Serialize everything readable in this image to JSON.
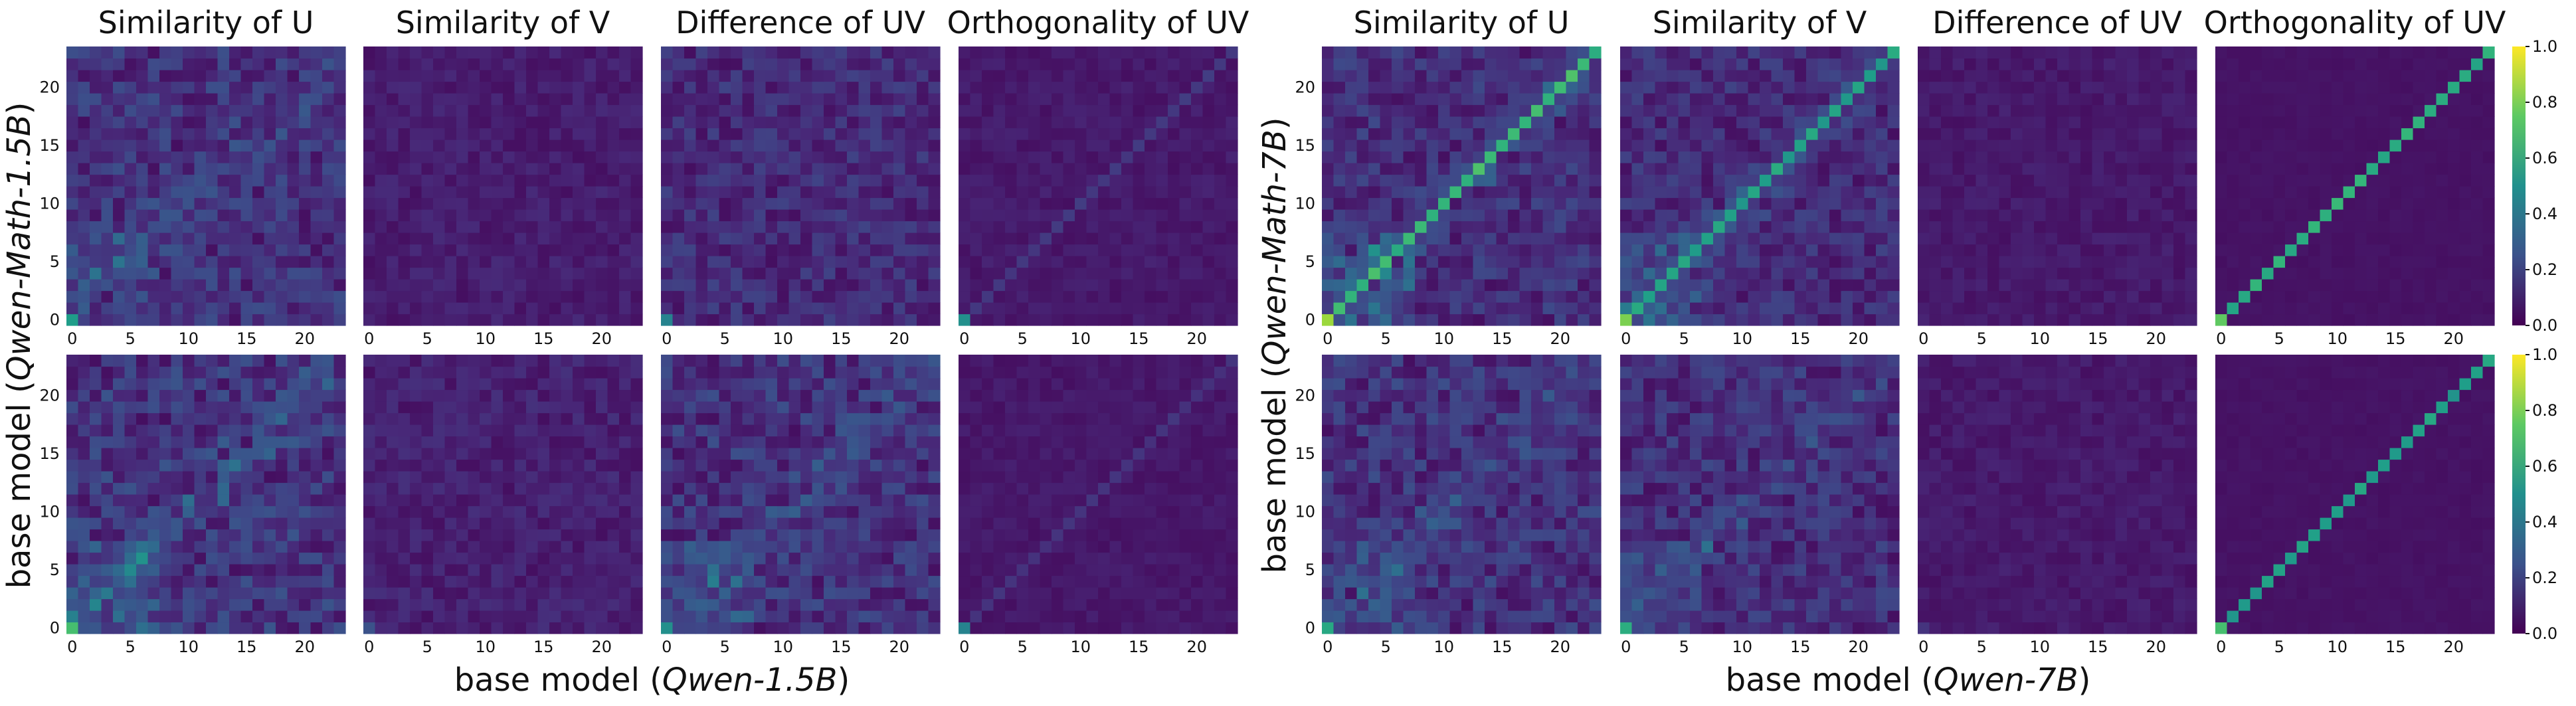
{
  "chart_data": {
    "type": "heatmap",
    "grid_size": 24,
    "colormap": "viridis",
    "colorbar": {
      "range": [
        0.0,
        1.0
      ],
      "ticks": [
        "0.0",
        "0.2",
        "0.4",
        "0.6",
        "0.8",
        "1.0"
      ]
    },
    "panel_titles": [
      "Similarity of U",
      "Similarity of V",
      "Difference of UV",
      "Orthogonality of UV"
    ],
    "axis_ticks": {
      "x": [
        "0",
        "5",
        "10",
        "15",
        "20"
      ],
      "y": [
        "0",
        "5",
        "10",
        "15",
        "20"
      ],
      "range": [
        0,
        24
      ]
    },
    "groups": [
      {
        "name": "Qwen-1.5B",
        "xlabel_prefix": "base model (",
        "xlabel_model": "Qwen-1.5B",
        "xlabel_suffix": ")",
        "ylabel_prefix": "base model (",
        "ylabel_model": "Qwen-Math-1.5B",
        "ylabel_suffix": ")",
        "rows": [
          [
            {
              "diag": 0.0,
              "noise": 0.2,
              "origin": 0.55,
              "band": 0.1,
              "seed": 11
            },
            {
              "diag": 0.0,
              "noise": 0.08,
              "origin": 0.1,
              "band": 0.0,
              "seed": 12
            },
            {
              "diag": 0.0,
              "noise": 0.16,
              "origin": 0.45,
              "band": 0.0,
              "seed": 13
            },
            {
              "diag": 0.18,
              "noise": 0.06,
              "origin": 0.5,
              "band": 0.0,
              "seed": 14
            }
          ],
          [
            {
              "diag": 0.0,
              "noise": 0.22,
              "origin": 0.7,
              "band": 0.15,
              "seed": 15
            },
            {
              "diag": 0.0,
              "noise": 0.1,
              "origin": 0.25,
              "band": 0.0,
              "seed": 16
            },
            {
              "diag": 0.0,
              "noise": 0.2,
              "origin": 0.5,
              "band": 0.12,
              "seed": 17
            },
            {
              "diag": 0.16,
              "noise": 0.05,
              "origin": 0.45,
              "band": 0.0,
              "seed": 18
            }
          ]
        ]
      },
      {
        "name": "Qwen-7B",
        "xlabel_prefix": "base model (",
        "xlabel_model": "Qwen-7B",
        "xlabel_suffix": ")",
        "ylabel_prefix": "base model (",
        "ylabel_model": "Qwen-Math-7B",
        "ylabel_suffix": ")",
        "rows": [
          [
            {
              "diag": 0.72,
              "noise": 0.18,
              "origin": 0.85,
              "band": 0.2,
              "seed": 21
            },
            {
              "diag": 0.62,
              "noise": 0.16,
              "origin": 0.8,
              "band": 0.18,
              "seed": 22
            },
            {
              "diag": 0.0,
              "noise": 0.06,
              "origin": 0.1,
              "band": 0.0,
              "seed": 23
            },
            {
              "diag": 0.68,
              "noise": 0.02,
              "origin": 0.75,
              "band": 0.0,
              "seed": 24
            }
          ],
          [
            {
              "diag": 0.0,
              "noise": 0.2,
              "origin": 0.6,
              "band": 0.1,
              "seed": 25
            },
            {
              "diag": 0.0,
              "noise": 0.18,
              "origin": 0.62,
              "band": 0.1,
              "seed": 26
            },
            {
              "diag": 0.0,
              "noise": 0.06,
              "origin": 0.15,
              "band": 0.0,
              "seed": 27
            },
            {
              "diag": 0.6,
              "noise": 0.02,
              "origin": 0.7,
              "band": 0.0,
              "seed": 28
            }
          ]
        ]
      }
    ]
  }
}
